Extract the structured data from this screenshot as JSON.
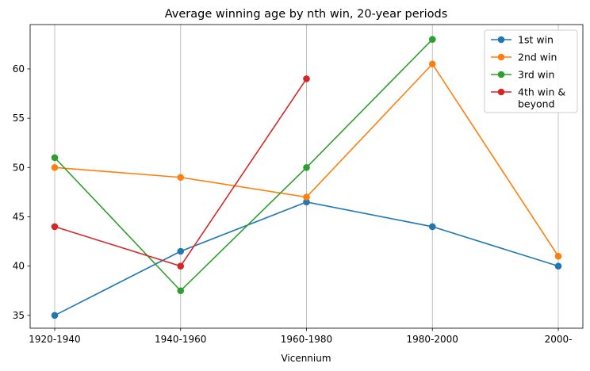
{
  "chart_data": {
    "type": "line",
    "title": "Average winning age by nth win, 20-year periods",
    "xlabel": "Vicennium",
    "ylabel": "",
    "categories": [
      "1920-1940",
      "1940-1960",
      "1960-1980",
      "1980-2000",
      "2000-"
    ],
    "ylim": [
      33.7,
      64.5
    ],
    "yticks": [
      35,
      40,
      45,
      50,
      55,
      60
    ],
    "grid": "vertical",
    "legend_position": "top-right",
    "series": [
      {
        "name": "1st win",
        "color": "#1f77b4",
        "values": [
          35,
          41.5,
          46.5,
          44,
          40
        ]
      },
      {
        "name": "2nd win",
        "color": "#ff7f0e",
        "values": [
          50,
          49,
          47,
          60.5,
          41
        ]
      },
      {
        "name": "3rd win",
        "color": "#2ca02c",
        "values": [
          51,
          37.5,
          50,
          63,
          null
        ]
      },
      {
        "name": "4th win & beyond",
        "color": "#d62728",
        "values": [
          44,
          40,
          59,
          null,
          null
        ]
      }
    ]
  }
}
